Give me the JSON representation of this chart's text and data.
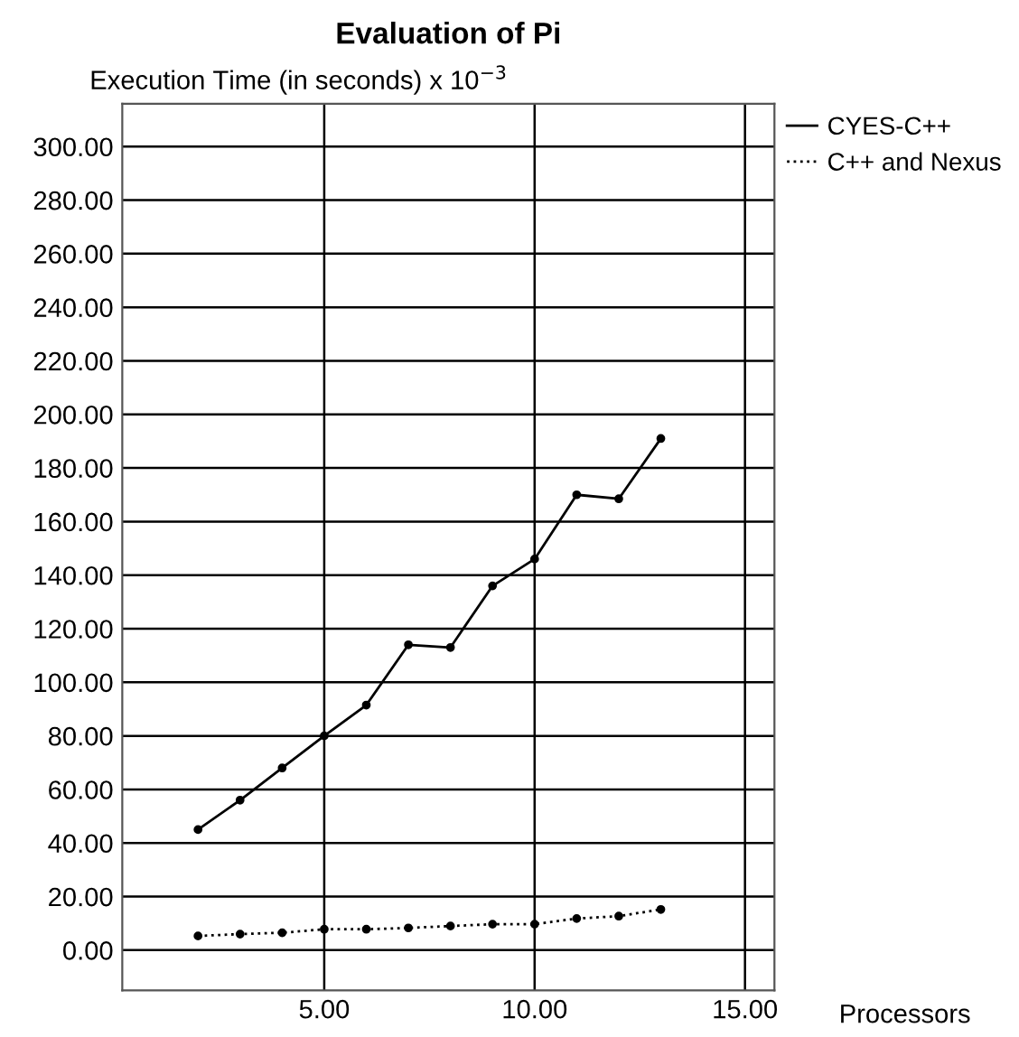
{
  "chart_data": {
    "type": "line",
    "title": "Evaluation of Pi",
    "ylabel": "Execution Time (in seconds) x 10$^{−3}$",
    "xlabel": "Processors",
    "x": [
      2,
      3,
      4,
      5,
      6,
      7,
      8,
      9,
      10,
      11,
      12,
      13
    ],
    "series": [
      {
        "name": "CYES-C++",
        "color": "#000000",
        "line_style": "solid",
        "values": [
          45,
          56,
          68,
          80,
          91.5,
          114,
          113,
          136,
          146,
          170,
          168.5,
          191
        ]
      },
      {
        "name": "C++ and Nexus",
        "color": "#000000",
        "line_style": "dotted",
        "values": [
          5.3,
          6,
          6.5,
          7.8,
          7.8,
          8.3,
          9,
          9.7,
          9.7,
          11.8,
          12.7,
          15.2
        ]
      }
    ],
    "xlim": [
      0.2,
      15.7
    ],
    "xticks": [
      {
        "value": 5,
        "label": "5.00"
      },
      {
        "value": 10,
        "label": "10.00"
      },
      {
        "value": 15,
        "label": "15.00"
      }
    ],
    "ylim": [
      -15,
      316
    ],
    "yticks": [
      {
        "value": 0,
        "label": "0.00"
      },
      {
        "value": 20,
        "label": "20.00"
      },
      {
        "value": 40,
        "label": "40.00"
      },
      {
        "value": 60,
        "label": "60.00"
      },
      {
        "value": 80,
        "label": "80.00"
      },
      {
        "value": 100,
        "label": "100.00"
      },
      {
        "value": 120,
        "label": "120.00"
      },
      {
        "value": 140,
        "label": "140.00"
      },
      {
        "value": 160,
        "label": "160.00"
      },
      {
        "value": 180,
        "label": "180.00"
      },
      {
        "value": 200,
        "label": "200.00"
      },
      {
        "value": 220,
        "label": "220.00"
      },
      {
        "value": 240,
        "label": "240.00"
      },
      {
        "value": 260,
        "label": "260.00"
      },
      {
        "value": 280,
        "label": "280.00"
      },
      {
        "value": 300,
        "label": "300.00"
      }
    ],
    "grid": true,
    "legend": "top right",
    "marker": "circle"
  }
}
